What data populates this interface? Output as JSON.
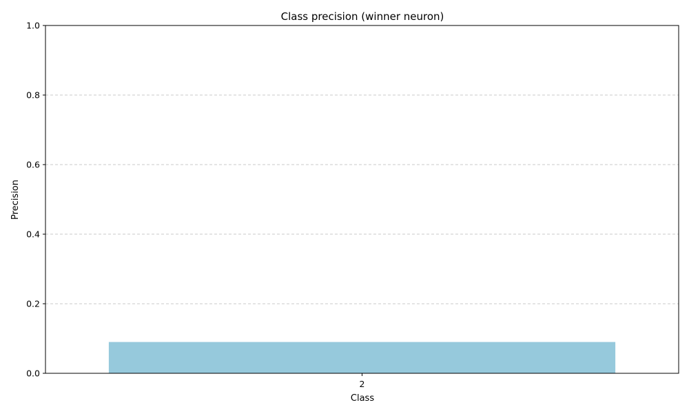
{
  "chart_data": {
    "type": "bar",
    "title": "Class precision (winner neuron)",
    "xlabel": "Class",
    "ylabel": "Precision",
    "categories": [
      "2"
    ],
    "values": [
      0.09
    ],
    "ylim": [
      0,
      1.0
    ],
    "yticks": [
      "0.0",
      "0.2",
      "0.4",
      "0.6",
      "0.8",
      "1.0"
    ],
    "grid": {
      "y": true,
      "style": "dashed"
    },
    "legend": "none",
    "colors": {
      "bar": "#96c9dc",
      "grid": "#c8c8c8",
      "axis": "#000000"
    }
  }
}
